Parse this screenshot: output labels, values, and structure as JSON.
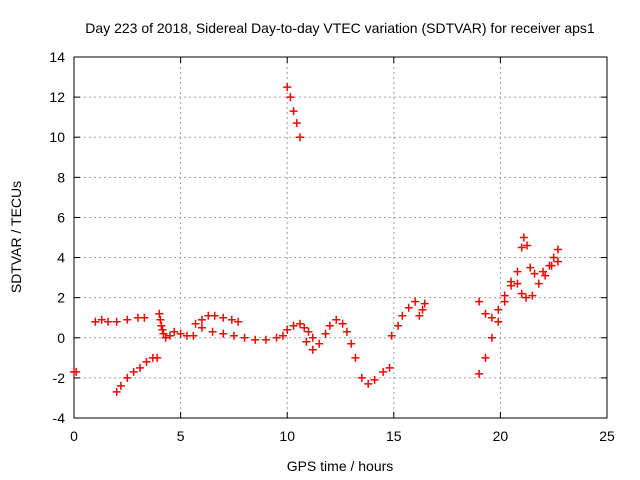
{
  "chart_data": {
    "type": "scatter",
    "title": "Day 223 of 2018, Sidereal Day-to-day VTEC variation (SDTVAR) for receiver aps1",
    "xlabel": "GPS time / hours",
    "ylabel": "SDTVAR / TECUs",
    "xlim": [
      0,
      25
    ],
    "ylim": [
      -4,
      14
    ],
    "xticks": [
      0,
      5,
      10,
      15,
      20,
      25
    ],
    "yticks": [
      -4,
      -2,
      0,
      2,
      4,
      6,
      8,
      10,
      12,
      14
    ],
    "grid": true,
    "marker": "+",
    "color": "#ff0000",
    "series": [
      {
        "name": "aps1",
        "points": [
          [
            0.0,
            -1.7
          ],
          [
            0.1,
            -1.7
          ],
          [
            1.0,
            0.8
          ],
          [
            1.3,
            0.9
          ],
          [
            1.6,
            0.8
          ],
          [
            2.0,
            0.8
          ],
          [
            2.5,
            0.9
          ],
          [
            3.0,
            1.0
          ],
          [
            3.3,
            1.0
          ],
          [
            2.0,
            -2.7
          ],
          [
            2.2,
            -2.4
          ],
          [
            2.5,
            -2.0
          ],
          [
            2.8,
            -1.7
          ],
          [
            3.1,
            -1.5
          ],
          [
            3.4,
            -1.2
          ],
          [
            3.7,
            -1.0
          ],
          [
            3.9,
            -1.0
          ],
          [
            4.0,
            1.2
          ],
          [
            4.05,
            0.9
          ],
          [
            4.1,
            0.6
          ],
          [
            4.15,
            0.4
          ],
          [
            4.2,
            0.2
          ],
          [
            4.3,
            0.0
          ],
          [
            4.5,
            0.1
          ],
          [
            4.7,
            0.3
          ],
          [
            5.0,
            0.2
          ],
          [
            5.3,
            0.1
          ],
          [
            5.6,
            0.1
          ],
          [
            5.7,
            0.7
          ],
          [
            6.0,
            0.9
          ],
          [
            6.3,
            1.1
          ],
          [
            6.6,
            1.1
          ],
          [
            7.0,
            1.0
          ],
          [
            7.4,
            0.9
          ],
          [
            7.7,
            0.8
          ],
          [
            6.0,
            0.5
          ],
          [
            6.5,
            0.3
          ],
          [
            7.0,
            0.2
          ],
          [
            7.5,
            0.1
          ],
          [
            8.0,
            0.0
          ],
          [
            8.5,
            -0.1
          ],
          [
            9.0,
            -0.1
          ],
          [
            9.5,
            0.0
          ],
          [
            9.8,
            0.1
          ],
          [
            10.0,
            0.4
          ],
          [
            10.3,
            0.6
          ],
          [
            10.6,
            0.7
          ],
          [
            10.8,
            0.5
          ],
          [
            11.0,
            0.3
          ],
          [
            11.2,
            0.0
          ],
          [
            10.0,
            12.5
          ],
          [
            10.15,
            12.0
          ],
          [
            10.3,
            11.3
          ],
          [
            10.45,
            10.7
          ],
          [
            10.6,
            10.0
          ],
          [
            10.9,
            -0.2
          ],
          [
            11.2,
            -0.6
          ],
          [
            11.5,
            -0.3
          ],
          [
            11.8,
            0.2
          ],
          [
            12.0,
            0.6
          ],
          [
            12.3,
            0.9
          ],
          [
            12.6,
            0.7
          ],
          [
            12.8,
            0.3
          ],
          [
            13.0,
            -0.3
          ],
          [
            13.2,
            -1.0
          ],
          [
            13.5,
            -2.0
          ],
          [
            13.8,
            -2.3
          ],
          [
            14.1,
            -2.1
          ],
          [
            14.5,
            -1.7
          ],
          [
            14.8,
            -1.5
          ],
          [
            14.9,
            0.1
          ],
          [
            15.2,
            0.6
          ],
          [
            15.4,
            1.1
          ],
          [
            15.7,
            1.5
          ],
          [
            16.0,
            1.8
          ],
          [
            16.2,
            1.1
          ],
          [
            16.35,
            1.4
          ],
          [
            16.45,
            1.7
          ],
          [
            19.0,
            1.8
          ],
          [
            19.3,
            1.2
          ],
          [
            19.6,
            1.0
          ],
          [
            19.9,
            1.4
          ],
          [
            20.2,
            2.1
          ],
          [
            20.5,
            2.8
          ],
          [
            20.8,
            3.3
          ],
          [
            21.0,
            4.5
          ],
          [
            21.1,
            5.0
          ],
          [
            21.25,
            4.6
          ],
          [
            21.4,
            3.5
          ],
          [
            21.6,
            3.2
          ],
          [
            22.0,
            3.3
          ],
          [
            22.3,
            3.6
          ],
          [
            22.5,
            4.0
          ],
          [
            22.7,
            4.4
          ],
          [
            19.0,
            -1.8
          ],
          [
            19.3,
            -1.0
          ],
          [
            19.6,
            0.0
          ],
          [
            19.9,
            0.8
          ],
          [
            20.2,
            1.8
          ],
          [
            20.5,
            2.6
          ],
          [
            20.8,
            2.7
          ],
          [
            21.0,
            2.2
          ],
          [
            21.2,
            2.0
          ],
          [
            21.5,
            2.1
          ],
          [
            21.8,
            2.7
          ],
          [
            22.1,
            3.1
          ],
          [
            22.4,
            3.6
          ],
          [
            22.7,
            3.8
          ]
        ]
      }
    ]
  }
}
